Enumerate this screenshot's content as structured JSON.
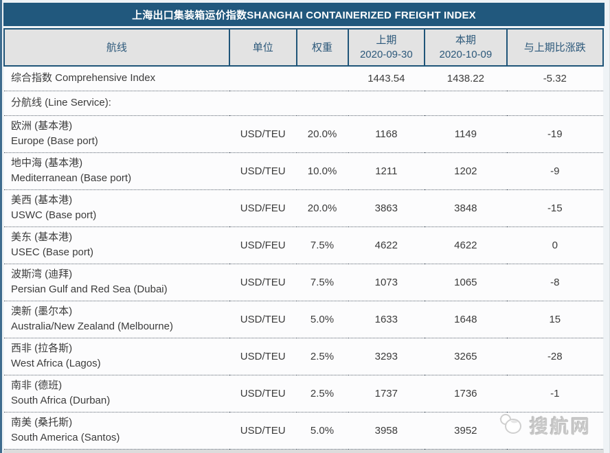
{
  "title_bar": {
    "text": "上海出口集装箱运价指数SHANGHAI CONTAINERIZED FREIGHT INDEX"
  },
  "table": {
    "headers": {
      "route": "航线",
      "unit": "单位",
      "weight": "权重",
      "prev_label": "上期",
      "prev_date": "2020-09-30",
      "curr_label": "本期",
      "curr_date": "2020-10-09",
      "change": "与上期比涨跌"
    },
    "rows": [
      {
        "kind": "single",
        "name": "综合指数 Comprehensive Index",
        "unit": "",
        "weight": "",
        "prev": "1443.54",
        "curr": "1438.22",
        "change": "-5.32"
      },
      {
        "kind": "single",
        "name": "分航线 (Line Service):",
        "unit": "",
        "weight": "",
        "prev": "",
        "curr": "",
        "change": ""
      },
      {
        "kind": "route",
        "name_cn": "欧洲 (基本港)",
        "name_en": "Europe (Base port)",
        "unit": "USD/TEU",
        "weight": "20.0%",
        "prev": "1168",
        "curr": "1149",
        "change": "-19"
      },
      {
        "kind": "route",
        "name_cn": "地中海 (基本港)",
        "name_en": "Mediterranean (Base port)",
        "unit": "USD/TEU",
        "weight": "10.0%",
        "prev": "1211",
        "curr": "1202",
        "change": "-9"
      },
      {
        "kind": "route",
        "name_cn": "美西 (基本港)",
        "name_en": "USWC (Base port)",
        "unit": "USD/FEU",
        "weight": "20.0%",
        "prev": "3863",
        "curr": "3848",
        "change": "-15"
      },
      {
        "kind": "route",
        "name_cn": "美东 (基本港)",
        "name_en": "USEC (Base port)",
        "unit": "USD/FEU",
        "weight": "7.5%",
        "prev": "4622",
        "curr": "4622",
        "change": "0"
      },
      {
        "kind": "route",
        "name_cn": "波斯湾 (迪拜)",
        "name_en": "Persian Gulf and Red Sea (Dubai)",
        "unit": "USD/TEU",
        "weight": "7.5%",
        "prev": "1073",
        "curr": "1065",
        "change": "-8"
      },
      {
        "kind": "route",
        "name_cn": "澳新 (墨尔本)",
        "name_en": "Australia/New Zealand (Melbourne)",
        "unit": "USD/TEU",
        "weight": "5.0%",
        "prev": "1633",
        "curr": "1648",
        "change": "15"
      },
      {
        "kind": "route",
        "name_cn": "西非 (拉各斯)",
        "name_en": "West Africa (Lagos)",
        "unit": "USD/TEU",
        "weight": "2.5%",
        "prev": "3293",
        "curr": "3265",
        "change": "-28"
      },
      {
        "kind": "route",
        "name_cn": "南非 (德班)",
        "name_en": "South Africa (Durban)",
        "unit": "USD/TEU",
        "weight": "2.5%",
        "prev": "1737",
        "curr": "1736",
        "change": "-1"
      },
      {
        "kind": "route",
        "name_cn": "南美 (桑托斯)",
        "name_en": "South America (Santos)",
        "unit": "USD/TEU",
        "weight": "5.0%",
        "prev": "3958",
        "curr": "3952",
        "change": "",
        "watermark": true
      }
    ]
  },
  "watermark": {
    "text": "搜航网",
    "icon": "bird-logo"
  },
  "colors": {
    "title_bg": "#21587D",
    "header_bg": "#E3E3E3",
    "header_text": "#2C587A",
    "header_border": "#1F5478",
    "body_text": "#3B3B3B",
    "row_separator": "#5A6470",
    "watermark_gray": "#C9C9C9"
  }
}
